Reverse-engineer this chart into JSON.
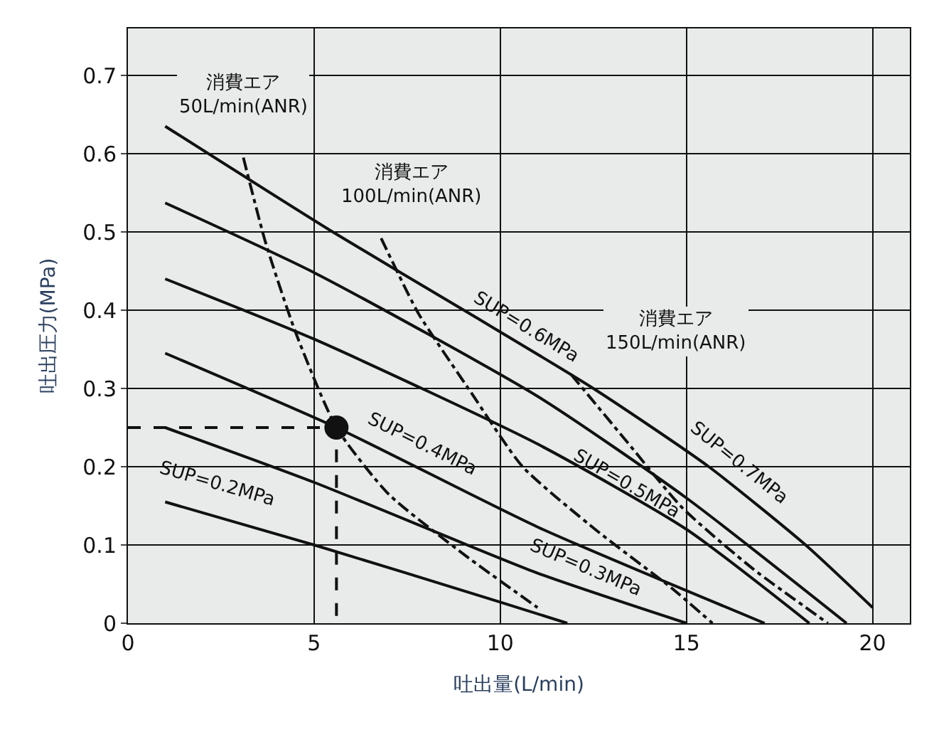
{
  "chart_data": {
    "type": "line",
    "xlabel": "吐出量(L/min)",
    "ylabel": "吐出圧力(MPa)",
    "xlim": [
      0,
      21
    ],
    "ylim": [
      0,
      0.76
    ],
    "xticks": [
      0,
      5,
      10,
      15,
      20
    ],
    "yticks": [
      0,
      0.1,
      0.2,
      0.3,
      0.4,
      0.5,
      0.6,
      0.7
    ],
    "grid": true,
    "marker": "none",
    "series": [
      {
        "color": "#111111",
        "x": [
          1,
          5.5,
          9.2,
          12.5,
          15.6,
          18.2,
          20
        ],
        "values": [
          0.635,
          0.5,
          0.395,
          0.3,
          0.2,
          0.1,
          0.02
        ]
      },
      {
        "color": "#111111",
        "x": [
          1,
          5,
          11,
          15,
          19.3
        ],
        "values": [
          0.537,
          0.448,
          0.29,
          0.16,
          0
        ]
      },
      {
        "color": "#111111",
        "x": [
          1,
          5,
          11,
          15,
          18.3
        ],
        "values": [
          0.44,
          0.363,
          0.229,
          0.12,
          0
        ]
      },
      {
        "color": "#111111",
        "x": [
          1,
          5.6,
          11,
          17.1
        ],
        "values": [
          0.345,
          0.25,
          0.123,
          0
        ]
      },
      {
        "color": "#111111",
        "x": [
          1,
          5,
          11,
          15
        ],
        "values": [
          0.25,
          0.18,
          0.064,
          0
        ]
      },
      {
        "color": "#111111",
        "x": [
          1,
          5,
          10,
          11.8
        ],
        "values": [
          0.155,
          0.1,
          0.027,
          0
        ]
      },
      {
        "color": "#111111",
        "line_style": "dashdot",
        "x": [
          3.1,
          3.7,
          4.5,
          5.6,
          7,
          9.05,
          11
        ],
        "values": [
          0.595,
          0.486,
          0.372,
          0.25,
          0.165,
          0.087,
          0.02
        ]
      },
      {
        "color": "#111111",
        "line_style": "dashdot",
        "x": [
          6.8,
          7.8,
          9.2,
          10.6,
          12.6,
          14.6,
          15.7
        ],
        "values": [
          0.492,
          0.396,
          0.296,
          0.2,
          0.118,
          0.045,
          0
        ]
      },
      {
        "color": "#111111",
        "line_style": "dashdot",
        "x": [
          11.9,
          13.4,
          14.9,
          16.8,
          18.8
        ],
        "values": [
          0.318,
          0.232,
          0.147,
          0.069,
          0
        ]
      },
      {
        "color": "#111111",
        "line_style": "dashed",
        "x": [
          0,
          5.6,
          5.6
        ],
        "values": [
          0.25,
          0.25,
          0
        ]
      },
      {
        "type": "scatter",
        "marker": "circle",
        "color": "#111111",
        "x": [
          5.6
        ],
        "values": [
          0.25
        ]
      }
    ],
    "annotations": [
      "消費エア\n50L/min(ANR)",
      "消費エア\n100L/min(ANR)",
      "消費エア\n150L/min(ANR)",
      "SUP=0.7MPa",
      "SUP=0.6MPa",
      "SUP=0.5MPa",
      "SUP=0.4MPa",
      "SUP=0.3MPa",
      "SUP=0.2MPa"
    ]
  }
}
